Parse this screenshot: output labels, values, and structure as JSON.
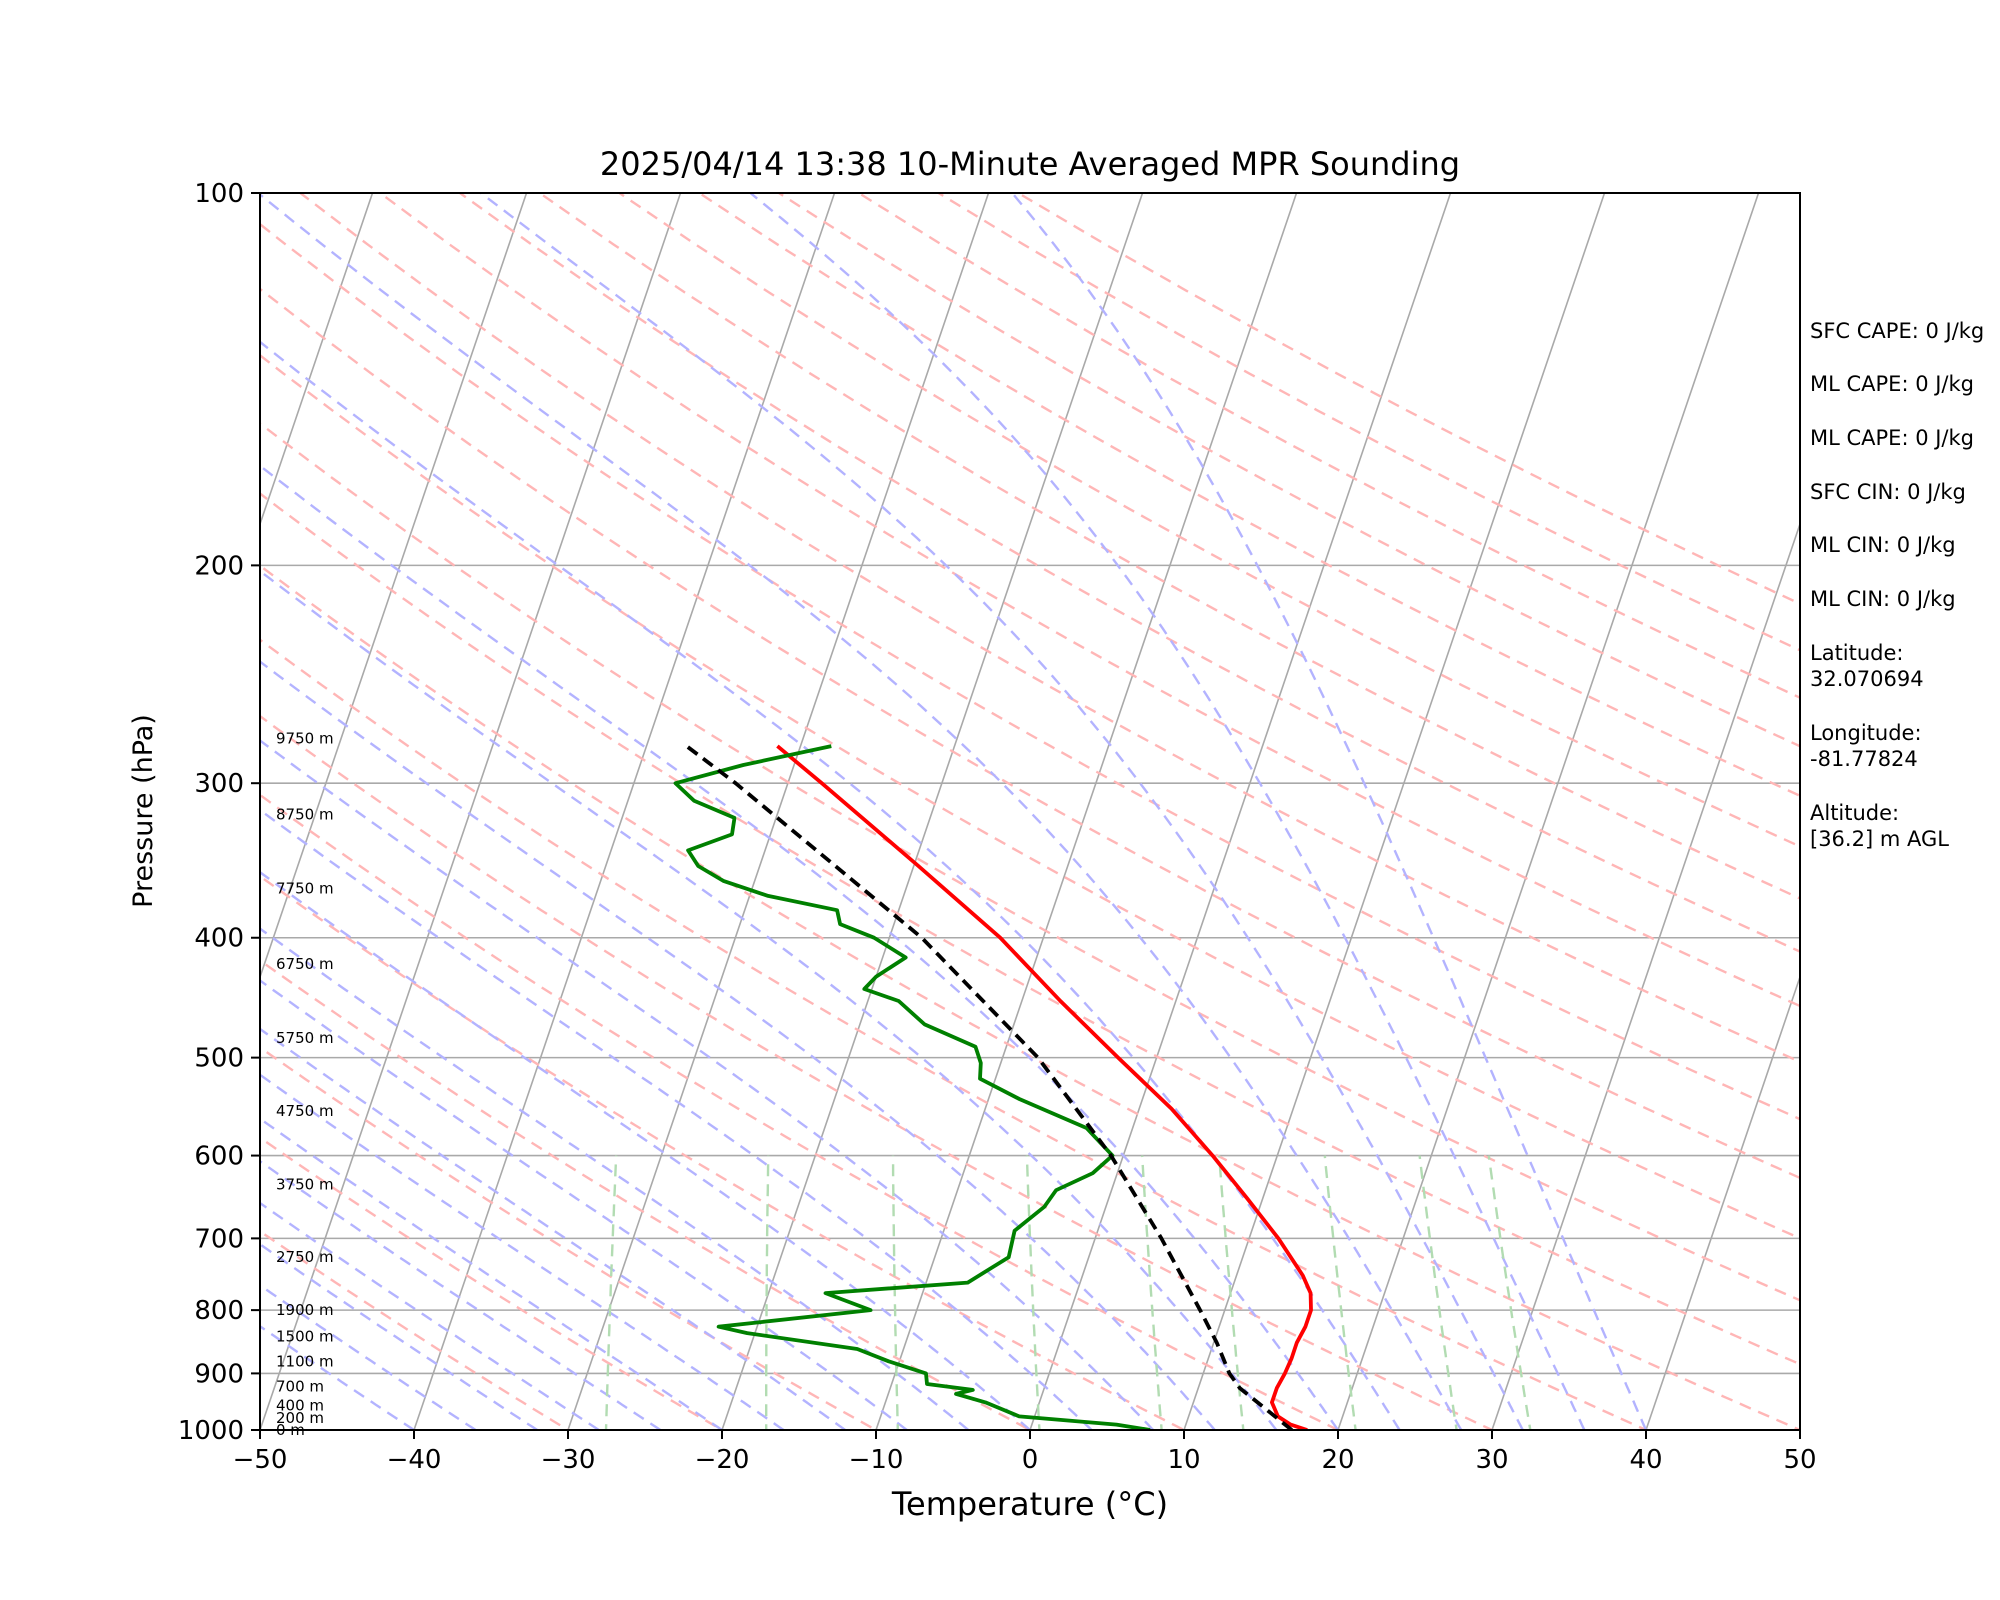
{
  "chart_data": {
    "type": "line",
    "subtype": "skew-T log-p",
    "title": "2025/04/14 13:38 10-Minute Averaged MPR Sounding",
    "xlabel": "Temperature (°C)",
    "ylabel": "Pressure (hPa)",
    "xlim": [
      -50,
      50
    ],
    "ylim": [
      1000,
      100
    ],
    "y_scale": "log",
    "x_ticks": [
      -50,
      -40,
      -30,
      -20,
      -10,
      0,
      10,
      20,
      30,
      40,
      50
    ],
    "x_tick_labels": [
      "−50",
      "−40",
      "−30",
      "−20",
      "−10",
      "0",
      "10",
      "20",
      "30",
      "40",
      "50"
    ],
    "y_ticks": [
      1000,
      900,
      800,
      700,
      600,
      500,
      400,
      300,
      200,
      100
    ],
    "y_tick_labels": [
      "1000",
      "900",
      "800",
      "700",
      "600",
      "500",
      "400",
      "300",
      "200",
      "100"
    ],
    "grid": "horizontal at pressure ticks",
    "series": [
      {
        "role": "temperature",
        "color": "#ff0000",
        "style": "solid",
        "points": [
          {
            "p": 1000,
            "t": 18.0
          },
          {
            "p": 990,
            "t": 16.8
          },
          {
            "p": 975,
            "t": 15.8
          },
          {
            "p": 950,
            "t": 15.1
          },
          {
            "p": 925,
            "t": 15.1
          },
          {
            "p": 900,
            "t": 15.3
          },
          {
            "p": 875,
            "t": 15.4
          },
          {
            "p": 850,
            "t": 15.4
          },
          {
            "p": 825,
            "t": 15.6
          },
          {
            "p": 800,
            "t": 15.6
          },
          {
            "p": 775,
            "t": 15.2
          },
          {
            "p": 750,
            "t": 14.3
          },
          {
            "p": 700,
            "t": 11.9
          },
          {
            "p": 650,
            "t": 9.0
          },
          {
            "p": 600,
            "t": 5.8
          },
          {
            "p": 550,
            "t": 2.1
          },
          {
            "p": 500,
            "t": -2.5
          },
          {
            "p": 450,
            "t": -7.5
          },
          {
            "p": 400,
            "t": -12.8
          },
          {
            "p": 350,
            "t": -19.7
          },
          {
            "p": 300,
            "t": -27.8
          },
          {
            "p": 280,
            "t": -31.5
          }
        ]
      },
      {
        "role": "dewpoint",
        "color": "#008000",
        "style": "solid",
        "points": [
          {
            "p": 1000,
            "t": 7.8
          },
          {
            "p": 990,
            "t": 5.5
          },
          {
            "p": 975,
            "t": -1.0
          },
          {
            "p": 950,
            "t": -3.5
          },
          {
            "p": 935,
            "t": -5.6
          },
          {
            "p": 928,
            "t": -4.6
          },
          {
            "p": 918,
            "t": -7.7
          },
          {
            "p": 900,
            "t": -8.0
          },
          {
            "p": 880,
            "t": -10.7
          },
          {
            "p": 860,
            "t": -13.0
          },
          {
            "p": 835,
            "t": -20.5
          },
          {
            "p": 825,
            "t": -22.5
          },
          {
            "p": 800,
            "t": -13.0
          },
          {
            "p": 775,
            "t": -16.3
          },
          {
            "p": 760,
            "t": -7.3
          },
          {
            "p": 725,
            "t": -5.2
          },
          {
            "p": 690,
            "t": -5.4
          },
          {
            "p": 660,
            "t": -4.0
          },
          {
            "p": 640,
            "t": -3.6
          },
          {
            "p": 620,
            "t": -1.6
          },
          {
            "p": 600,
            "t": -0.7
          },
          {
            "p": 570,
            "t": -3.0
          },
          {
            "p": 540,
            "t": -8.0
          },
          {
            "p": 520,
            "t": -11.0
          },
          {
            "p": 505,
            "t": -11.3
          },
          {
            "p": 490,
            "t": -12.0
          },
          {
            "p": 470,
            "t": -15.8
          },
          {
            "p": 450,
            "t": -18.0
          },
          {
            "p": 440,
            "t": -20.5
          },
          {
            "p": 430,
            "t": -20.0
          },
          {
            "p": 415,
            "t": -18.5
          },
          {
            "p": 400,
            "t": -21.0
          },
          {
            "p": 390,
            "t": -23.5
          },
          {
            "p": 380,
            "t": -24.0
          },
          {
            "p": 370,
            "t": -28.8
          },
          {
            "p": 360,
            "t": -32.0
          },
          {
            "p": 350,
            "t": -34.0
          },
          {
            "p": 340,
            "t": -35.0
          },
          {
            "p": 330,
            "t": -32.5
          },
          {
            "p": 320,
            "t": -32.7
          },
          {
            "p": 310,
            "t": -35.7
          },
          {
            "p": 300,
            "t": -37.3
          },
          {
            "p": 290,
            "t": -33.3
          },
          {
            "p": 280,
            "t": -28.0
          }
        ]
      },
      {
        "role": "parcel profile",
        "color": "#000000",
        "style": "dashed",
        "points": [
          {
            "p": 1000,
            "t": 17.0
          },
          {
            "p": 925,
            "t": 12.7
          },
          {
            "p": 900,
            "t": 11.7
          },
          {
            "p": 850,
            "t": 10.2
          },
          {
            "p": 800,
            "t": 8.4
          },
          {
            "p": 700,
            "t": 4.3
          },
          {
            "p": 600,
            "t": -0.8
          },
          {
            "p": 500,
            "t": -7.7
          },
          {
            "p": 400,
            "t": -17.9
          },
          {
            "p": 300,
            "t": -33.4
          },
          {
            "p": 280,
            "t": -37.4
          }
        ]
      }
    ],
    "height_labels": [
      {
        "p": 1000,
        "text": "0 m"
      },
      {
        "p": 978,
        "text": "200 m"
      },
      {
        "p": 955,
        "text": "400 m"
      },
      {
        "p": 922,
        "text": "700 m"
      },
      {
        "p": 880,
        "text": "1100 m"
      },
      {
        "p": 840,
        "text": "1500 m"
      },
      {
        "p": 800,
        "text": "1900 m"
      },
      {
        "p": 725,
        "text": "2750 m"
      },
      {
        "p": 633,
        "text": "3750 m"
      },
      {
        "p": 552,
        "text": "4750 m"
      },
      {
        "p": 482,
        "text": "5750 m"
      },
      {
        "p": 420,
        "text": "6750 m"
      },
      {
        "p": 365,
        "text": "7750 m"
      },
      {
        "p": 318,
        "text": "8750 m"
      },
      {
        "p": 276,
        "text": "9750 m"
      }
    ],
    "reference_lines": {
      "isotherms_color": "#a9a9a9",
      "dry_adiabats_color": "#ffb6b6",
      "moist_adiabats_color": "#b3b3ff",
      "mixing_ratio_color": "#b2dcb2"
    }
  },
  "stats": {
    "sfc_cape": "SFC CAPE: 0 J/kg",
    "ml_cape_1": "ML CAPE: 0 J/kg",
    "ml_cape_2": "ML CAPE: 0 J/kg",
    "sfc_cin": "SFC CIN: 0 J/kg",
    "ml_cin_1": "ML CIN: 0 J/kg",
    "ml_cin_2": "ML CIN: 0 J/kg",
    "latitude_label": "Latitude:",
    "latitude_value": "32.070694",
    "longitude_label": "Longitude:",
    "longitude_value": "-81.77824",
    "altitude_label": "Altitude:",
    "altitude_value": "[36.2] m AGL"
  }
}
